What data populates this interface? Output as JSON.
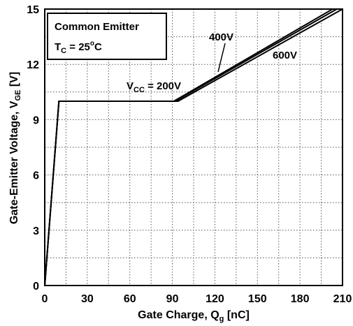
{
  "chart_data": {
    "type": "line",
    "xlabel": {
      "main": "Gate Charge, Q",
      "sub": "g",
      "unit": " [nC]"
    },
    "ylabel": {
      "main": "Gate-Emitter Voltage, V",
      "sub": "GE",
      "unit": " [V]"
    },
    "xlim": [
      0,
      210
    ],
    "ylim": [
      0,
      15
    ],
    "x_ticks": [
      0,
      30,
      60,
      90,
      120,
      150,
      180,
      210
    ],
    "y_ticks": [
      0,
      3,
      6,
      9,
      12,
      15
    ],
    "grid": true,
    "legend_box": {
      "line1": "Common Emitter",
      "line2_main": "T",
      "line2_sub": "C",
      "line2_eq": " = 25",
      "line2_sup": "o",
      "line2_unit": "C"
    },
    "series": [
      {
        "name": "V_CC = 200V",
        "x": [
          0,
          10,
          91,
          203
        ],
        "y": [
          0,
          10,
          10,
          15
        ]
      },
      {
        "name": "400V",
        "x": [
          0,
          10,
          92,
          206
        ],
        "y": [
          0,
          10,
          10,
          15
        ]
      },
      {
        "name": "600V",
        "x": [
          0,
          10,
          94,
          210
        ],
        "y": [
          0,
          10,
          10,
          15
        ]
      }
    ],
    "annotations": {
      "vcc_main": "V",
      "vcc_sub": "CC",
      "vcc_val": " = 200V",
      "v400": "400V",
      "v600": "600V"
    }
  }
}
